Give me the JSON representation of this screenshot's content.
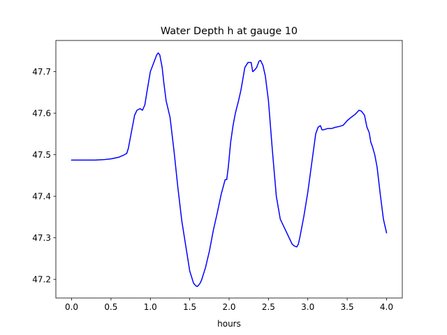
{
  "chart_data": {
    "type": "line",
    "title": "Water Depth h at gauge 10",
    "xlabel": "hours",
    "ylabel": "",
    "xlim": [
      -0.2,
      4.2
    ],
    "ylim": [
      47.155,
      47.775
    ],
    "xticks": [
      0.0,
      0.5,
      1.0,
      1.5,
      2.0,
      2.5,
      3.0,
      3.5,
      4.0
    ],
    "xtick_labels": [
      "0.0",
      "0.5",
      "1.0",
      "1.5",
      "2.0",
      "2.5",
      "3.0",
      "3.5",
      "4.0"
    ],
    "yticks": [
      47.2,
      47.3,
      47.4,
      47.5,
      47.6,
      47.7
    ],
    "ytick_labels": [
      "47.2",
      "47.3",
      "47.4",
      "47.5",
      "47.6",
      "47.7"
    ],
    "grid": false,
    "series": [
      {
        "color": "#0000ff",
        "x": [
          0.0,
          0.2,
          0.3,
          0.4,
          0.5,
          0.6,
          0.65,
          0.7,
          0.72,
          0.75,
          0.78,
          0.8,
          0.83,
          0.87,
          0.9,
          0.93,
          0.96,
          1.0,
          1.04,
          1.08,
          1.1,
          1.12,
          1.15,
          1.17,
          1.2,
          1.25,
          1.3,
          1.35,
          1.4,
          1.45,
          1.5,
          1.55,
          1.58,
          1.6,
          1.63,
          1.65,
          1.7,
          1.75,
          1.8,
          1.85,
          1.9,
          1.95,
          1.97,
          1.99,
          2.0,
          2.02,
          2.05,
          2.08,
          2.1,
          2.12,
          2.15,
          2.2,
          2.24,
          2.28,
          2.3,
          2.32,
          2.35,
          2.38,
          2.4,
          2.43,
          2.46,
          2.5,
          2.55,
          2.6,
          2.65,
          2.7,
          2.75,
          2.8,
          2.83,
          2.86,
          2.88,
          2.9,
          2.95,
          3.0,
          3.05,
          3.1,
          3.13,
          3.16,
          3.18,
          3.2,
          3.25,
          3.3,
          3.35,
          3.4,
          3.45,
          3.5,
          3.55,
          3.6,
          3.65,
          3.68,
          3.72,
          3.75,
          3.78,
          3.8,
          3.82,
          3.85,
          3.88,
          3.92,
          3.96,
          4.0
        ],
        "values": [
          47.487,
          47.487,
          47.487,
          47.488,
          47.49,
          47.494,
          47.498,
          47.503,
          47.515,
          47.545,
          47.575,
          47.595,
          47.607,
          47.611,
          47.607,
          47.62,
          47.655,
          47.7,
          47.72,
          47.74,
          47.745,
          47.74,
          47.71,
          47.675,
          47.63,
          47.59,
          47.51,
          47.42,
          47.34,
          47.28,
          47.22,
          47.19,
          47.184,
          47.183,
          47.19,
          47.198,
          47.228,
          47.268,
          47.318,
          47.36,
          47.405,
          47.44,
          47.44,
          47.47,
          47.49,
          47.53,
          47.57,
          47.6,
          47.615,
          47.63,
          47.655,
          47.71,
          47.722,
          47.722,
          47.7,
          47.703,
          47.71,
          47.725,
          47.727,
          47.715,
          47.69,
          47.63,
          47.51,
          47.4,
          47.345,
          47.325,
          47.305,
          47.285,
          47.28,
          47.278,
          47.285,
          47.302,
          47.352,
          47.41,
          47.48,
          47.55,
          47.566,
          47.57,
          47.56,
          47.56,
          47.563,
          47.563,
          47.566,
          47.568,
          47.571,
          47.582,
          47.59,
          47.597,
          47.607,
          47.605,
          47.595,
          47.567,
          47.553,
          47.53,
          47.52,
          47.5,
          47.47,
          47.405,
          47.345,
          47.312
        ]
      }
    ]
  }
}
